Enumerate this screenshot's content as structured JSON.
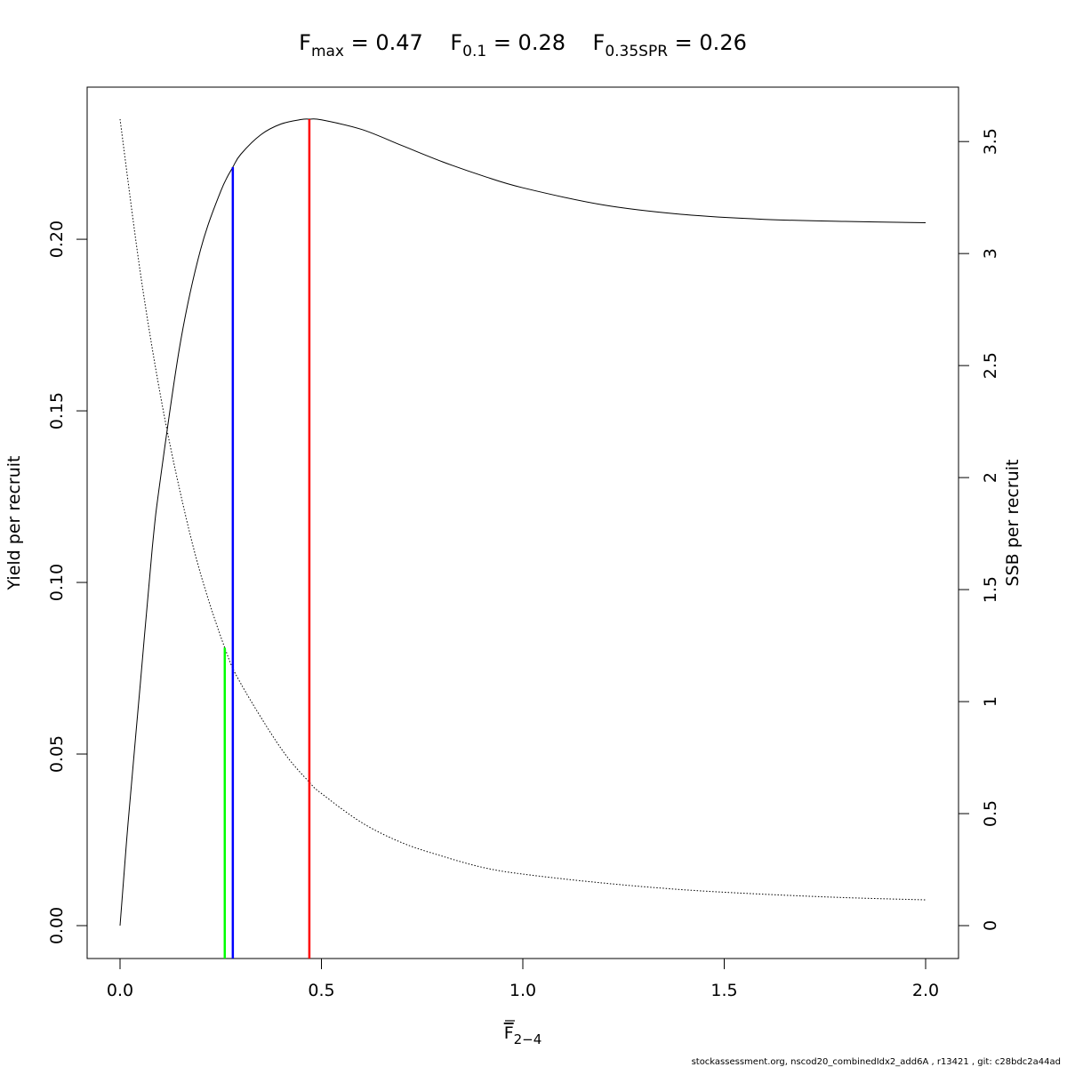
{
  "chart_data": {
    "type": "line",
    "title_parts": [
      {
        "main": "F",
        "sub": "max",
        "rest": " = 0.47"
      },
      {
        "main": "F",
        "sub": "0.1",
        "rest": " = 0.28"
      },
      {
        "main": "F",
        "sub": "0.35SPR",
        "rest": " = 0.26"
      }
    ],
    "xlabel": {
      "main": "F",
      "sub": "2−4"
    },
    "ylabel_left": "Yield per recruit",
    "ylabel_right": "SSB per recruit",
    "xlim": [
      0,
      2
    ],
    "ylim_left": [
      0,
      0.235
    ],
    "ylim_right": [
      0,
      3.6
    ],
    "x_ticks": [
      "0.0",
      "0.5",
      "1.0",
      "1.5",
      "2.0"
    ],
    "x_tick_values": [
      0,
      0.5,
      1.0,
      1.5,
      2.0
    ],
    "y_left_ticks": [
      "0.00",
      "0.05",
      "0.10",
      "0.15",
      "0.20"
    ],
    "y_left_tick_values": [
      0,
      0.05,
      0.1,
      0.15,
      0.2
    ],
    "y_right_ticks": [
      "0",
      "0.5",
      "1",
      "1.5",
      "2",
      "2.5",
      "3",
      "3.5"
    ],
    "y_right_tick_values": [
      0,
      0.5,
      1,
      1.5,
      2,
      2.5,
      3,
      3.5
    ],
    "series": [
      {
        "axis": "left",
        "style": "solid",
        "x": [
          0,
          0.02,
          0.05,
          0.08,
          0.1,
          0.15,
          0.2,
          0.25,
          0.28,
          0.3,
          0.35,
          0.4,
          0.45,
          0.47,
          0.5,
          0.6,
          0.7,
          0.8,
          0.9,
          1.0,
          1.2,
          1.4,
          1.6,
          1.8,
          2.0
        ],
        "y": [
          0,
          0.03,
          0.07,
          0.11,
          0.13,
          0.17,
          0.197,
          0.214,
          0.221,
          0.2248,
          0.2305,
          0.2336,
          0.2349,
          0.235,
          0.2348,
          0.232,
          0.2273,
          0.2226,
          0.2185,
          0.215,
          0.21,
          0.2072,
          0.2058,
          0.2052,
          0.2048
        ]
      },
      {
        "axis": "right",
        "style": "dotted",
        "x": [
          0,
          0.05,
          0.1,
          0.15,
          0.2,
          0.26,
          0.3,
          0.4,
          0.47,
          0.5,
          0.6,
          0.7,
          0.8,
          0.9,
          1.0,
          1.2,
          1.4,
          1.6,
          1.8,
          2.0
        ],
        "y": [
          3.6,
          2.92,
          2.37,
          1.93,
          1.57,
          1.24,
          1.08,
          0.79,
          0.64,
          0.59,
          0.46,
          0.37,
          0.31,
          0.26,
          0.23,
          0.19,
          0.16,
          0.14,
          0.125,
          0.115
        ]
      }
    ],
    "reference_lines": [
      {
        "name": "Fmax",
        "x": 0.47,
        "y_top": 0.235,
        "color": "#ff0000"
      },
      {
        "name": "F0.1",
        "x": 0.28,
        "y_top": 0.221,
        "color": "#0000ff"
      },
      {
        "name": "F0.35SPR",
        "x": 0.26,
        "y_top": 0.081,
        "color": "#00ff00"
      }
    ],
    "grid": false
  },
  "footer": "stockassessment.org, nscod20_combinedIdx2_add6A , r13421 , git: c28bdc2a44ad"
}
